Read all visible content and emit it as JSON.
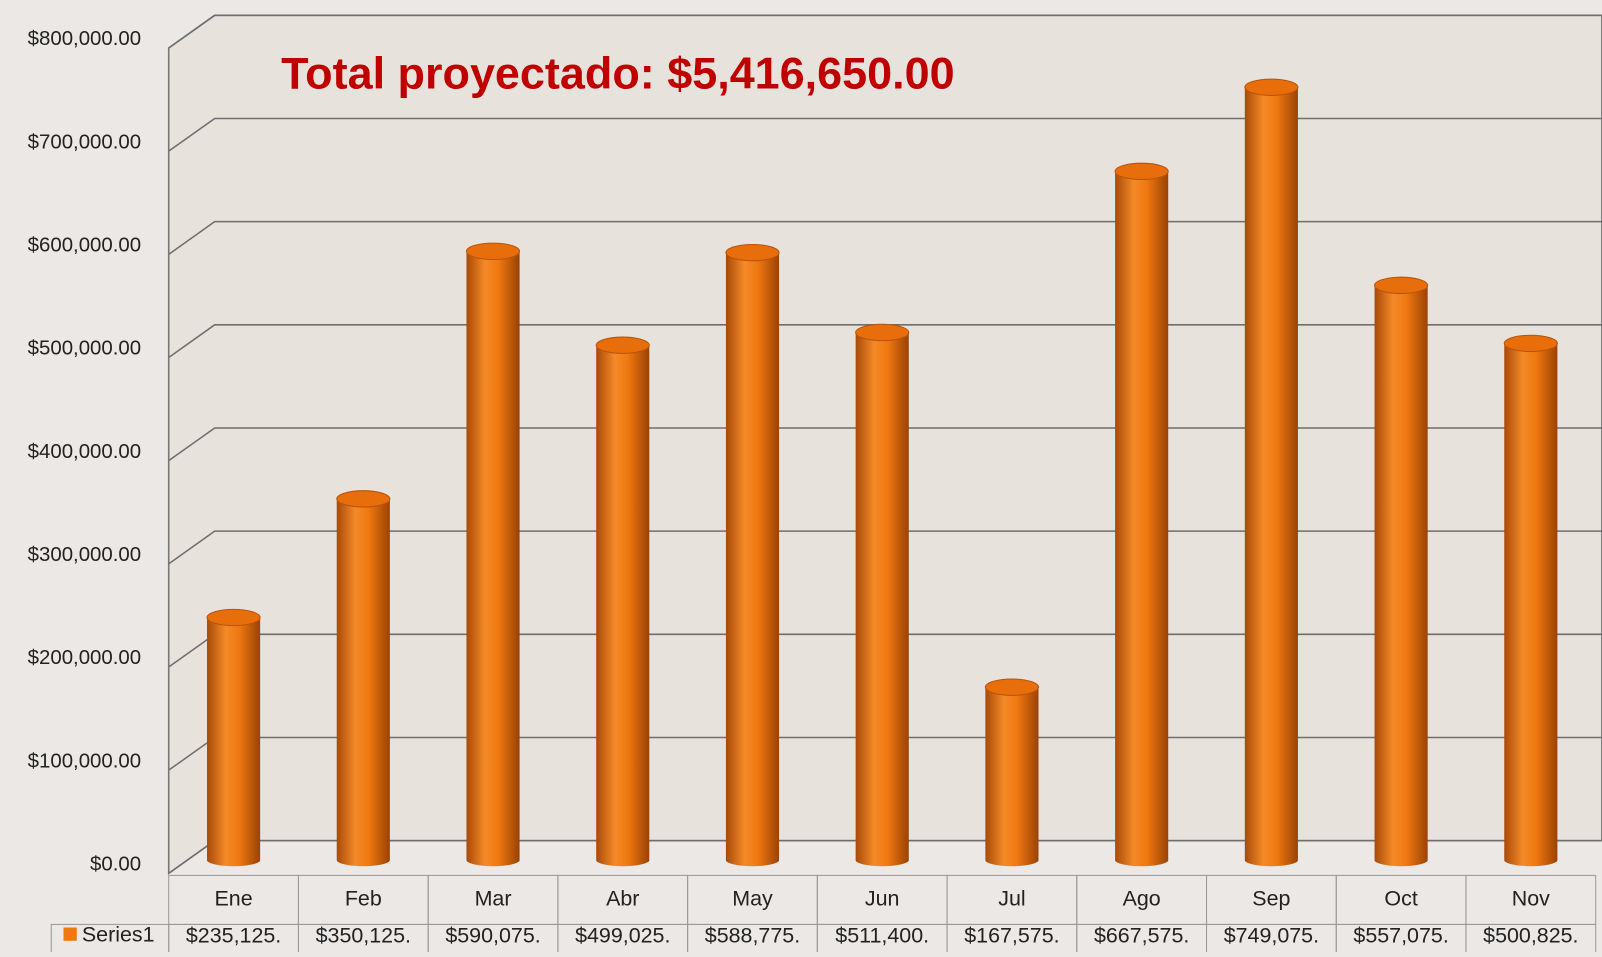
{
  "chart_data": {
    "type": "bar",
    "title": "Total proyectado: $5,416,650.00",
    "categories": [
      "Ene",
      "Feb",
      "Mar",
      "Abr",
      "May",
      "Jun",
      "Jul",
      "Ago",
      "Sep",
      "Oct",
      "Nov"
    ],
    "series": [
      {
        "name": "Series1",
        "color": "#f07810",
        "values": [
          235125,
          350125,
          590075,
          499025,
          588775,
          511400,
          167575,
          667575,
          749075,
          557075,
          500825
        ],
        "value_labels": [
          "$235,125.",
          "$350,125.",
          "$590,075.",
          "$499,025.",
          "$588,775.",
          "$511,400.",
          "$167,575.",
          "$667,575.",
          "$749,075.",
          "$557,075.",
          "$500,825."
        ]
      }
    ],
    "ylim": [
      0,
      800000
    ],
    "yticks": [
      {
        "value": 0,
        "label": "$0.00"
      },
      {
        "value": 100000,
        "label": "$100,000.00"
      },
      {
        "value": 200000,
        "label": "$200,000.00"
      },
      {
        "value": 300000,
        "label": "$300,000.00"
      },
      {
        "value": 400000,
        "label": "$400,000.00"
      },
      {
        "value": 500000,
        "label": "$500,000.00"
      },
      {
        "value": 600000,
        "label": "$600,000.00"
      },
      {
        "value": 700000,
        "label": "$700,000.00"
      },
      {
        "value": 800000,
        "label": "$800,000.00"
      }
    ],
    "grid": true
  }
}
